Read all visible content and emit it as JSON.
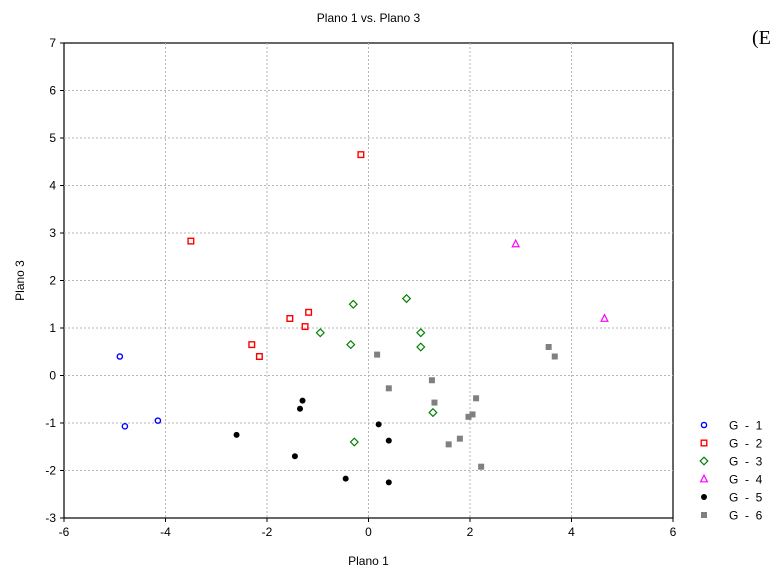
{
  "chart_data": {
    "type": "scatter",
    "title": "Plano 1 vs. Plano 3",
    "xlabel": "Plano 1",
    "ylabel": "Plano 3",
    "xlim": [
      -6,
      6
    ],
    "ylim": [
      -3,
      7
    ],
    "xticks": [
      -6,
      -4,
      -2,
      0,
      2,
      4,
      6
    ],
    "yticks": [
      -3,
      -2,
      -1,
      0,
      1,
      2,
      3,
      4,
      5,
      6,
      7
    ],
    "grid": true,
    "legend_position": "bottom-right, outside plot",
    "series": [
      {
        "name": "G  -  1",
        "marker": "circle-open",
        "color": "#0000ff",
        "points": [
          [
            -4.9,
            0.4
          ],
          [
            -4.8,
            -1.07
          ],
          [
            -4.15,
            -0.95
          ]
        ]
      },
      {
        "name": "G  -  2",
        "marker": "square-open",
        "color": "#ff0000",
        "points": [
          [
            -3.5,
            2.83
          ],
          [
            -0.15,
            4.65
          ],
          [
            -2.3,
            0.65
          ],
          [
            -2.15,
            0.4
          ],
          [
            -1.55,
            1.2
          ],
          [
            -1.25,
            1.03
          ],
          [
            -1.18,
            1.33
          ]
        ]
      },
      {
        "name": "G  -  3",
        "marker": "diamond-open",
        "color": "#008000",
        "points": [
          [
            -0.95,
            0.9
          ],
          [
            -0.3,
            1.5
          ],
          [
            -0.35,
            0.65
          ],
          [
            0.75,
            1.62
          ],
          [
            1.03,
            0.9
          ],
          [
            1.03,
            0.6
          ],
          [
            1.27,
            -0.78
          ],
          [
            -0.28,
            -1.4
          ]
        ]
      },
      {
        "name": "G  -  4",
        "marker": "triangle-open",
        "color": "#ff00ff",
        "points": [
          [
            2.9,
            2.77
          ],
          [
            4.65,
            1.2
          ]
        ]
      },
      {
        "name": "G  -  5",
        "marker": "circle-filled",
        "color": "#000000",
        "points": [
          [
            -2.6,
            -1.25
          ],
          [
            -1.3,
            -0.53
          ],
          [
            -1.35,
            -0.7
          ],
          [
            -1.45,
            -1.7
          ],
          [
            0.2,
            -1.03
          ],
          [
            0.4,
            -1.37
          ],
          [
            -0.45,
            -2.17
          ],
          [
            0.4,
            -2.25
          ]
        ]
      },
      {
        "name": "G  -  6",
        "marker": "square-filled",
        "color": "#808080",
        "points": [
          [
            0.17,
            0.44
          ],
          [
            0.4,
            -0.27
          ],
          [
            1.25,
            -0.1
          ],
          [
            1.3,
            -0.57
          ],
          [
            1.58,
            -1.45
          ],
          [
            1.8,
            -1.33
          ],
          [
            1.97,
            -0.87
          ],
          [
            2.05,
            -0.82
          ],
          [
            2.12,
            -0.48
          ],
          [
            2.22,
            -1.92
          ],
          [
            3.55,
            0.6
          ],
          [
            3.67,
            0.4
          ]
        ]
      }
    ]
  },
  "corner_text": "(E"
}
